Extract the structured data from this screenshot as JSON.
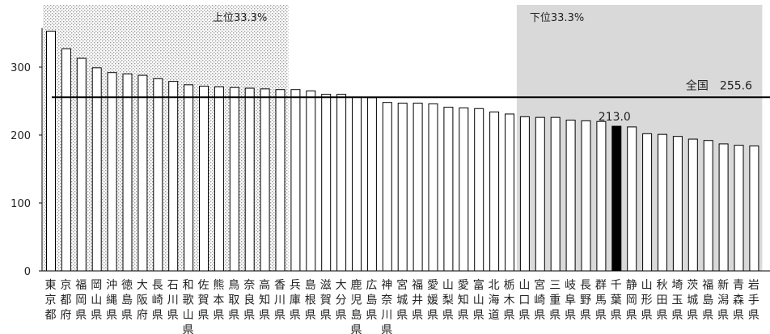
{
  "chart_data": {
    "type": "bar",
    "categories": [
      "東京都",
      "京都府",
      "福岡県",
      "岡山県",
      "沖縄県",
      "徳島県",
      "大阪府",
      "長崎県",
      "石川県",
      "和歌山県",
      "佐賀県",
      "熊本県",
      "鳥取県",
      "奈良県",
      "高知県",
      "香川県",
      "兵庫県",
      "島根県",
      "滋賀県",
      "大分県",
      "鹿児島県",
      "広島県",
      "神奈川県",
      "宮城県",
      "福井県",
      "愛媛県",
      "山梨県",
      "愛知県",
      "富山県",
      "北海道",
      "栃木県",
      "山口県",
      "宮崎県",
      "三重県",
      "岐阜県",
      "長野県",
      "群馬県",
      "千葉県",
      "静岡県",
      "山形県",
      "秋田県",
      "埼玉県",
      "茨城県",
      "福島県",
      "新潟県",
      "青森県",
      "岩手県"
    ],
    "values": [
      353,
      327,
      313,
      299,
      292,
      290,
      288,
      283,
      279,
      274,
      272,
      271,
      270,
      269,
      268,
      267,
      267,
      265,
      260,
      260,
      256,
      255,
      248,
      247,
      247,
      246,
      241,
      240,
      239,
      234,
      231,
      227,
      226,
      226,
      222,
      221,
      220,
      213.0,
      212,
      202,
      201,
      198,
      194,
      192,
      187,
      185,
      184
    ],
    "highlight_index": 37,
    "highlight_label": "213.0",
    "ylim": [
      0,
      360
    ],
    "yticks": [
      0,
      100,
      200,
      300
    ],
    "reference_line": {
      "value": 255.6,
      "label": "全国　255.6"
    },
    "zones": [
      {
        "label": "上位33.3%",
        "from_index": 0,
        "to_index": 15,
        "fill": "dotted"
      },
      {
        "label": "下位33.3%",
        "from_index": 31,
        "to_index": 46,
        "fill": "#d9d9d9"
      }
    ],
    "colors": {
      "bar": "#ffffff",
      "bar_edge": "#000000",
      "highlight": "#000000",
      "lower_zone": "#d9d9d9",
      "line": "#000000"
    }
  }
}
